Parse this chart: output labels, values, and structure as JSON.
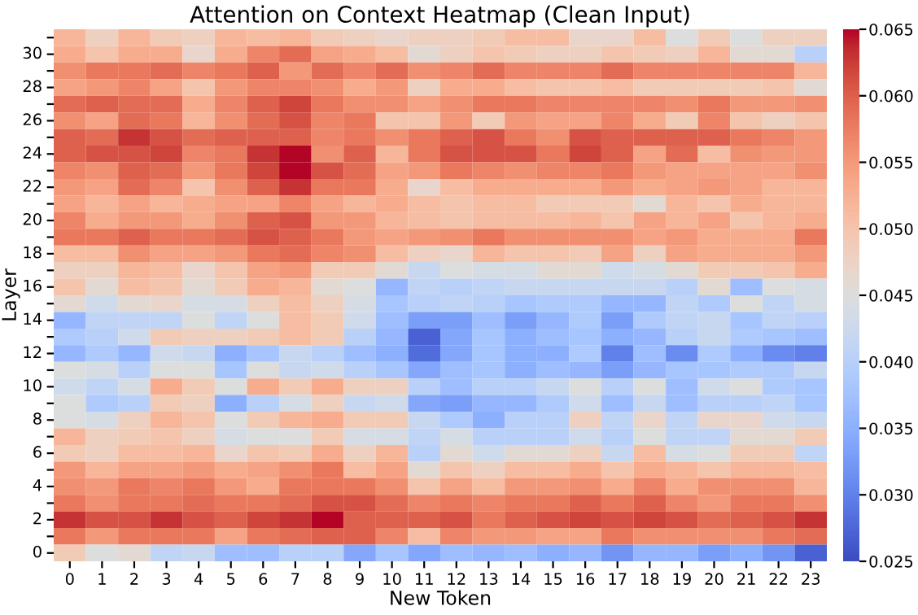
{
  "chart_data": {
    "type": "heatmap",
    "title": "Attention on Context Heatmap (Clean Input)",
    "xlabel": "New Token",
    "ylabel": "Layer",
    "categories": [
      "0",
      "1",
      "2",
      "3",
      "4",
      "5",
      "6",
      "7",
      "8",
      "9",
      "10",
      "11",
      "12",
      "13",
      "14",
      "15",
      "16",
      "17",
      "18",
      "19",
      "20",
      "21",
      "22",
      "23"
    ],
    "y_categories": [
      null,
      "30",
      null,
      "28",
      null,
      "26",
      null,
      "24",
      null,
      "22",
      null,
      "20",
      null,
      "18",
      null,
      "16",
      null,
      "14",
      null,
      "12",
      null,
      "10",
      null,
      "8",
      null,
      "6",
      null,
      "4",
      null,
      "2",
      null,
      "0"
    ],
    "cells": [
      [
        0.052,
        0.048,
        0.052,
        0.049,
        0.048,
        0.052,
        0.051,
        0.052,
        0.049,
        0.048,
        0.047,
        0.048,
        0.048,
        0.049,
        0.051,
        0.051,
        0.047,
        0.047,
        0.051,
        0.045,
        0.049,
        0.045,
        0.048,
        0.048
      ],
      [
        0.053,
        0.05,
        0.053,
        0.053,
        0.047,
        0.053,
        0.057,
        0.059,
        0.054,
        0.053,
        0.051,
        0.046,
        0.048,
        0.05,
        0.049,
        0.048,
        0.048,
        0.05,
        0.049,
        0.048,
        0.052,
        0.046,
        0.046,
        0.04
      ],
      [
        0.056,
        0.058,
        0.058,
        0.059,
        0.057,
        0.058,
        0.06,
        0.055,
        0.059,
        0.057,
        0.059,
        0.056,
        0.057,
        0.059,
        0.057,
        0.057,
        0.057,
        0.059,
        0.057,
        0.057,
        0.057,
        0.057,
        0.057,
        0.052
      ],
      [
        0.054,
        0.055,
        0.057,
        0.054,
        0.05,
        0.055,
        0.057,
        0.057,
        0.056,
        0.053,
        0.055,
        0.048,
        0.053,
        0.053,
        0.051,
        0.05,
        0.05,
        0.051,
        0.049,
        0.049,
        0.049,
        0.049,
        0.05,
        0.046
      ],
      [
        0.059,
        0.06,
        0.059,
        0.059,
        0.053,
        0.057,
        0.06,
        0.062,
        0.058,
        0.056,
        0.056,
        0.054,
        0.056,
        0.058,
        0.058,
        0.057,
        0.057,
        0.057,
        0.057,
        0.056,
        0.058,
        0.055,
        0.055,
        0.056
      ],
      [
        0.056,
        0.054,
        0.059,
        0.058,
        0.052,
        0.056,
        0.059,
        0.061,
        0.057,
        0.058,
        0.05,
        0.05,
        0.055,
        0.049,
        0.055,
        0.054,
        0.054,
        0.057,
        0.053,
        0.049,
        0.057,
        0.05,
        0.048,
        0.05
      ],
      [
        0.06,
        0.059,
        0.063,
        0.061,
        0.059,
        0.06,
        0.06,
        0.06,
        0.057,
        0.058,
        0.056,
        0.058,
        0.06,
        0.061,
        0.058,
        0.056,
        0.061,
        0.06,
        0.06,
        0.06,
        0.06,
        0.058,
        0.057,
        0.055
      ],
      [
        0.06,
        0.061,
        0.061,
        0.062,
        0.057,
        0.058,
        0.063,
        0.065,
        0.056,
        0.06,
        0.052,
        0.058,
        0.061,
        0.061,
        0.061,
        0.058,
        0.062,
        0.06,
        0.054,
        0.059,
        0.051,
        0.056,
        0.055,
        0.055
      ],
      [
        0.057,
        0.056,
        0.06,
        0.059,
        0.055,
        0.058,
        0.062,
        0.065,
        0.061,
        0.059,
        0.054,
        0.055,
        0.058,
        0.057,
        0.056,
        0.057,
        0.057,
        0.058,
        0.055,
        0.054,
        0.054,
        0.054,
        0.054,
        0.056
      ],
      [
        0.055,
        0.054,
        0.059,
        0.057,
        0.05,
        0.056,
        0.06,
        0.063,
        0.058,
        0.058,
        0.053,
        0.047,
        0.051,
        0.053,
        0.053,
        0.053,
        0.053,
        0.055,
        0.053,
        0.054,
        0.055,
        0.054,
        0.052,
        0.052
      ],
      [
        0.054,
        0.052,
        0.054,
        0.052,
        0.053,
        0.054,
        0.054,
        0.057,
        0.054,
        0.052,
        0.053,
        0.051,
        0.05,
        0.051,
        0.051,
        0.049,
        0.049,
        0.049,
        0.046,
        0.052,
        0.05,
        0.053,
        0.052,
        0.052
      ],
      [
        0.057,
        0.053,
        0.055,
        0.055,
        0.053,
        0.056,
        0.06,
        0.061,
        0.055,
        0.055,
        0.052,
        0.051,
        0.05,
        0.051,
        0.051,
        0.051,
        0.052,
        0.05,
        0.054,
        0.052,
        0.054,
        0.05,
        0.052,
        0.053
      ],
      [
        0.058,
        0.058,
        0.06,
        0.058,
        0.058,
        0.059,
        0.061,
        0.06,
        0.058,
        0.055,
        0.054,
        0.055,
        0.056,
        0.058,
        0.056,
        0.056,
        0.056,
        0.056,
        0.054,
        0.055,
        0.053,
        0.053,
        0.053,
        0.058
      ],
      [
        0.051,
        0.051,
        0.056,
        0.054,
        0.054,
        0.055,
        0.058,
        0.059,
        0.057,
        0.056,
        0.051,
        0.048,
        0.047,
        0.052,
        0.05,
        0.05,
        0.049,
        0.054,
        0.048,
        0.054,
        0.053,
        0.053,
        0.053,
        0.055
      ],
      [
        0.048,
        0.048,
        0.052,
        0.051,
        0.047,
        0.05,
        0.054,
        0.055,
        0.049,
        0.049,
        0.046,
        0.042,
        0.045,
        0.044,
        0.044,
        0.046,
        0.046,
        0.043,
        0.044,
        0.046,
        0.049,
        0.049,
        0.05,
        0.053
      ],
      [
        0.05,
        0.046,
        0.051,
        0.05,
        0.046,
        0.049,
        0.053,
        0.052,
        0.046,
        0.045,
        0.036,
        0.041,
        0.04,
        0.041,
        0.042,
        0.042,
        0.042,
        0.042,
        0.042,
        0.04,
        0.046,
        0.037,
        0.045,
        0.044
      ],
      [
        0.046,
        0.043,
        0.046,
        0.047,
        0.044,
        0.044,
        0.048,
        0.051,
        0.048,
        0.044,
        0.038,
        0.04,
        0.041,
        0.04,
        0.038,
        0.039,
        0.039,
        0.036,
        0.036,
        0.041,
        0.039,
        0.045,
        0.041,
        0.044
      ],
      [
        0.036,
        0.041,
        0.041,
        0.041,
        0.045,
        0.041,
        0.045,
        0.051,
        0.049,
        0.043,
        0.037,
        0.033,
        0.033,
        0.037,
        0.033,
        0.036,
        0.039,
        0.033,
        0.039,
        0.041,
        0.042,
        0.038,
        0.041,
        0.04
      ],
      [
        0.039,
        0.04,
        0.043,
        0.049,
        0.048,
        0.048,
        0.049,
        0.051,
        0.049,
        0.04,
        0.036,
        0.027,
        0.034,
        0.038,
        0.035,
        0.037,
        0.038,
        0.035,
        0.036,
        0.04,
        0.042,
        0.039,
        0.038,
        0.037
      ],
      [
        0.036,
        0.039,
        0.036,
        0.043,
        0.042,
        0.035,
        0.038,
        0.042,
        0.04,
        0.037,
        0.035,
        0.028,
        0.034,
        0.038,
        0.035,
        0.035,
        0.039,
        0.03,
        0.037,
        0.031,
        0.039,
        0.035,
        0.031,
        0.03
      ],
      [
        0.045,
        0.044,
        0.04,
        0.045,
        0.045,
        0.038,
        0.045,
        0.042,
        0.043,
        0.04,
        0.038,
        0.034,
        0.037,
        0.038,
        0.035,
        0.037,
        0.036,
        0.033,
        0.036,
        0.038,
        0.038,
        0.039,
        0.039,
        0.042
      ],
      [
        0.043,
        0.041,
        0.044,
        0.053,
        0.049,
        0.045,
        0.053,
        0.049,
        0.053,
        0.048,
        0.048,
        0.04,
        0.037,
        0.04,
        0.04,
        0.042,
        0.045,
        0.04,
        0.045,
        0.037,
        0.043,
        0.045,
        0.039,
        0.038
      ],
      [
        0.045,
        0.039,
        0.04,
        0.049,
        0.048,
        0.035,
        0.04,
        0.044,
        0.048,
        0.042,
        0.043,
        0.034,
        0.033,
        0.036,
        0.036,
        0.039,
        0.043,
        0.037,
        0.042,
        0.037,
        0.04,
        0.04,
        0.041,
        0.038
      ],
      [
        0.045,
        0.044,
        0.048,
        0.052,
        0.05,
        0.045,
        0.049,
        0.052,
        0.053,
        0.049,
        0.049,
        0.042,
        0.039,
        0.035,
        0.04,
        0.04,
        0.048,
        0.041,
        0.047,
        0.041,
        0.047,
        0.047,
        0.043,
        0.042
      ],
      [
        0.052,
        0.048,
        0.049,
        0.05,
        0.048,
        0.044,
        0.045,
        0.045,
        0.049,
        0.044,
        0.044,
        0.041,
        0.044,
        0.04,
        0.04,
        0.04,
        0.043,
        0.04,
        0.045,
        0.041,
        0.041,
        0.046,
        0.046,
        0.049
      ],
      [
        0.049,
        0.048,
        0.051,
        0.051,
        0.052,
        0.047,
        0.05,
        0.049,
        0.053,
        0.048,
        0.052,
        0.04,
        0.046,
        0.043,
        0.046,
        0.046,
        0.048,
        0.042,
        0.051,
        0.044,
        0.045,
        0.049,
        0.049,
        0.041
      ],
      [
        0.055,
        0.052,
        0.054,
        0.054,
        0.055,
        0.053,
        0.054,
        0.056,
        0.058,
        0.051,
        0.054,
        0.046,
        0.05,
        0.048,
        0.051,
        0.051,
        0.053,
        0.05,
        0.053,
        0.052,
        0.05,
        0.052,
        0.052,
        0.051
      ],
      [
        0.056,
        0.055,
        0.058,
        0.057,
        0.058,
        0.055,
        0.053,
        0.058,
        0.058,
        0.058,
        0.056,
        0.05,
        0.054,
        0.051,
        0.055,
        0.055,
        0.056,
        0.053,
        0.057,
        0.053,
        0.056,
        0.056,
        0.056,
        0.052
      ],
      [
        0.058,
        0.056,
        0.058,
        0.058,
        0.059,
        0.058,
        0.058,
        0.059,
        0.061,
        0.061,
        0.059,
        0.057,
        0.058,
        0.057,
        0.058,
        0.058,
        0.06,
        0.058,
        0.06,
        0.057,
        0.055,
        0.058,
        0.058,
        0.056
      ],
      [
        0.063,
        0.061,
        0.061,
        0.063,
        0.061,
        0.06,
        0.062,
        0.063,
        0.065,
        0.06,
        0.06,
        0.06,
        0.061,
        0.058,
        0.06,
        0.061,
        0.062,
        0.061,
        0.062,
        0.061,
        0.059,
        0.06,
        0.061,
        0.063
      ],
      [
        0.058,
        0.055,
        0.058,
        0.058,
        0.058,
        0.054,
        0.058,
        0.059,
        0.06,
        0.06,
        0.057,
        0.051,
        0.057,
        0.055,
        0.055,
        0.054,
        0.054,
        0.058,
        0.056,
        0.056,
        0.056,
        0.056,
        0.058,
        0.059
      ],
      [
        0.049,
        0.045,
        0.046,
        0.041,
        0.042,
        0.037,
        0.037,
        0.04,
        0.04,
        0.034,
        0.038,
        0.034,
        0.037,
        0.036,
        0.037,
        0.035,
        0.036,
        0.032,
        0.036,
        0.036,
        0.033,
        0.035,
        0.032,
        0.027
      ]
    ],
    "clim": [
      0.025,
      0.065
    ],
    "cticks": [
      {
        "value": 0.025,
        "label": "0.025"
      },
      {
        "value": 0.03,
        "label": "0.030"
      },
      {
        "value": 0.035,
        "label": "0.035"
      },
      {
        "value": 0.04,
        "label": "0.040"
      },
      {
        "value": 0.045,
        "label": "0.045"
      },
      {
        "value": 0.05,
        "label": "0.050"
      },
      {
        "value": 0.055,
        "label": "0.055"
      },
      {
        "value": 0.06,
        "label": "0.060"
      },
      {
        "value": 0.065,
        "label": "0.065"
      }
    ]
  }
}
